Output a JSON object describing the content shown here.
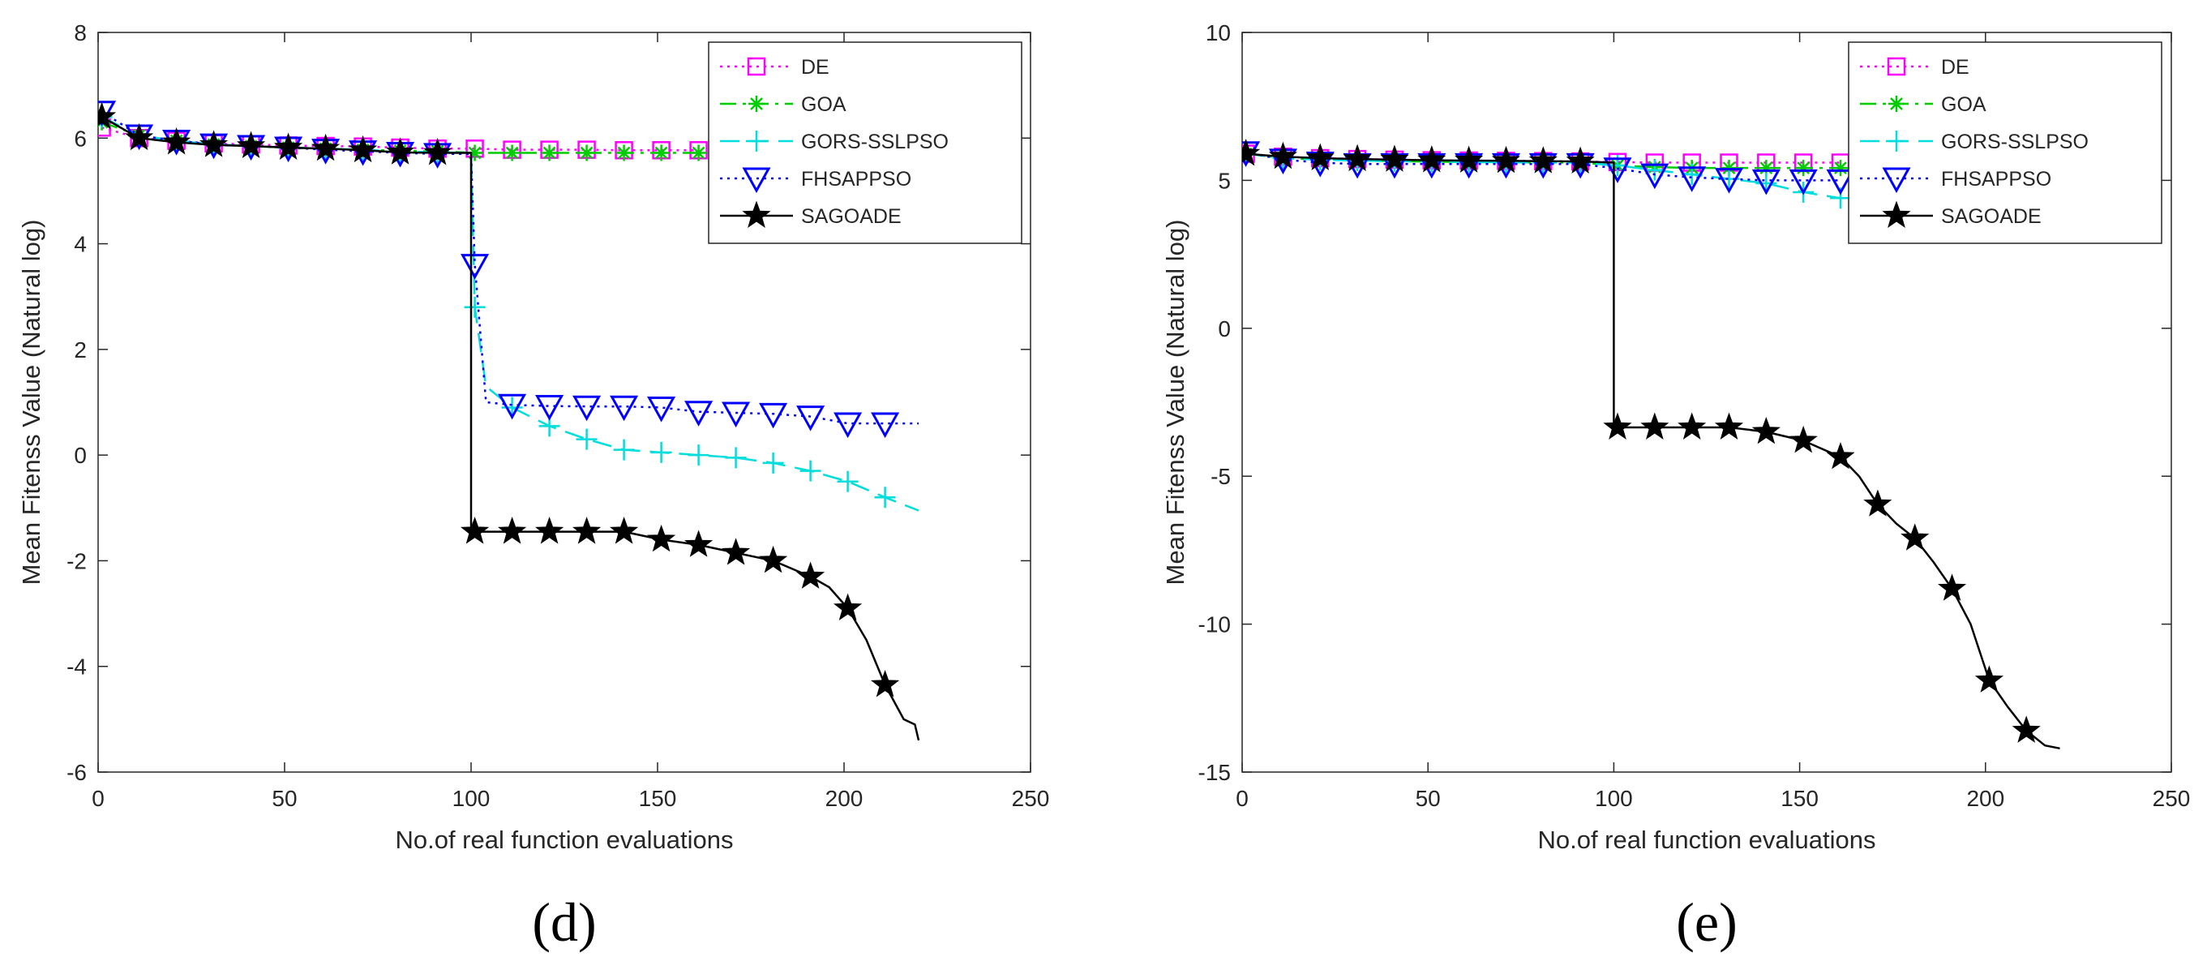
{
  "colors": {
    "DE": "#ff00ff",
    "GOA": "#00cc00",
    "GORS-SSLPSO": "#00dddd",
    "FHSAPPSO": "#0000ff",
    "SAGOADE": "#000000"
  },
  "chart_data": [
    {
      "type": "line",
      "panel_label": "(d)",
      "xlabel": "No.of real function evaluations",
      "ylabel": "Mean Fitenss Value (Natural log)",
      "xlim": [
        0,
        250
      ],
      "ylim": [
        -6,
        8
      ],
      "xticks": [
        "0",
        "50",
        "100",
        "150",
        "200",
        "250"
      ],
      "yticks": [
        "-6",
        "-4",
        "-2",
        "0",
        "2",
        "4",
        "6",
        "8"
      ],
      "legend_position": "top-right",
      "series": [
        {
          "name": "DE",
          "style": "dotted",
          "marker": "square",
          "x": [
            1,
            11,
            21,
            31,
            41,
            51,
            61,
            71,
            81,
            91,
            101,
            111,
            121,
            131,
            141,
            151,
            161
          ],
          "y": [
            6.2,
            6.0,
            5.95,
            5.9,
            5.88,
            5.86,
            5.85,
            5.84,
            5.82,
            5.8,
            5.8,
            5.78,
            5.78,
            5.78,
            5.77,
            5.77,
            5.77
          ]
        },
        {
          "name": "GOA",
          "style": "dashdot",
          "marker": "asterisk",
          "x": [
            1,
            11,
            21,
            31,
            41,
            51,
            61,
            71,
            81,
            91,
            101,
            111,
            121,
            131,
            141,
            151,
            161
          ],
          "y": [
            6.3,
            6.05,
            5.95,
            5.88,
            5.85,
            5.82,
            5.8,
            5.78,
            5.76,
            5.75,
            5.72,
            5.72,
            5.72,
            5.72,
            5.72,
            5.72,
            5.72
          ]
        },
        {
          "name": "GORS-SSLPSO",
          "style": "dashed",
          "marker": "plus",
          "x": [
            1,
            11,
            21,
            31,
            41,
            51,
            61,
            71,
            81,
            91,
            100,
            101,
            104,
            111,
            121,
            131,
            141,
            151,
            161,
            171,
            181,
            191,
            201,
            211,
            220
          ],
          "y": [
            6.4,
            6.05,
            5.95,
            5.88,
            5.85,
            5.82,
            5.8,
            5.78,
            5.75,
            5.73,
            5.72,
            2.8,
            1.3,
            0.9,
            0.55,
            0.3,
            0.1,
            0.05,
            0.0,
            -0.05,
            -0.15,
            -0.3,
            -0.5,
            -0.8,
            -1.05
          ]
        },
        {
          "name": "FHSAPPSO",
          "style": "dotted",
          "marker": "triangle-down",
          "x": [
            1,
            11,
            21,
            31,
            41,
            51,
            61,
            71,
            81,
            91,
            100,
            101,
            104,
            111,
            121,
            131,
            141,
            151,
            161,
            171,
            181,
            191,
            201,
            211,
            220
          ],
          "y": [
            6.5,
            6.05,
            5.95,
            5.88,
            5.85,
            5.82,
            5.78,
            5.75,
            5.72,
            5.7,
            5.7,
            3.6,
            1.0,
            0.95,
            0.93,
            0.92,
            0.92,
            0.9,
            0.82,
            0.8,
            0.78,
            0.73,
            0.6,
            0.6,
            0.6
          ]
        },
        {
          "name": "SAGOADE",
          "style": "solid",
          "marker": "star",
          "x": [
            1,
            11,
            21,
            31,
            41,
            51,
            61,
            71,
            81,
            91,
            100,
            100,
            101,
            111,
            121,
            131,
            141,
            151,
            161,
            171,
            181,
            191,
            196,
            201,
            206,
            211,
            216,
            219,
            220
          ],
          "y": [
            6.4,
            6.0,
            5.92,
            5.87,
            5.85,
            5.82,
            5.8,
            5.77,
            5.73,
            5.72,
            5.72,
            -1.45,
            -1.45,
            -1.45,
            -1.45,
            -1.45,
            -1.45,
            -1.6,
            -1.7,
            -1.85,
            -2.0,
            -2.3,
            -2.5,
            -2.9,
            -3.5,
            -4.35,
            -5.0,
            -5.1,
            -5.4
          ]
        }
      ]
    },
    {
      "type": "line",
      "panel_label": "(e)",
      "xlabel": "No.of real function evaluations",
      "ylabel": "Mean Fitenss Value (Natural log)",
      "xlim": [
        0,
        250
      ],
      "ylim": [
        -15,
        10
      ],
      "xticks": [
        "0",
        "50",
        "100",
        "150",
        "200",
        "250"
      ],
      "yticks": [
        "-15",
        "-10",
        "-5",
        "0",
        "5",
        "10"
      ],
      "legend_position": "top-right",
      "series": [
        {
          "name": "DE",
          "style": "dotted",
          "marker": "square",
          "x": [
            1,
            11,
            21,
            31,
            41,
            51,
            61,
            71,
            81,
            91,
            101,
            111,
            121,
            131,
            141,
            151,
            161
          ],
          "y": [
            5.9,
            5.8,
            5.75,
            5.72,
            5.7,
            5.68,
            5.67,
            5.66,
            5.65,
            5.64,
            5.62,
            5.6,
            5.6,
            5.6,
            5.6,
            5.6,
            5.6
          ]
        },
        {
          "name": "GOA",
          "style": "dashdot",
          "marker": "asterisk",
          "x": [
            1,
            11,
            21,
            31,
            41,
            51,
            61,
            71,
            81,
            91,
            101,
            111,
            121,
            131,
            141,
            151,
            161
          ],
          "y": [
            5.9,
            5.75,
            5.7,
            5.67,
            5.65,
            5.63,
            5.62,
            5.61,
            5.6,
            5.6,
            5.5,
            5.45,
            5.42,
            5.42,
            5.42,
            5.42,
            5.42
          ]
        },
        {
          "name": "GORS-SSLPSO",
          "style": "dashed",
          "marker": "plus",
          "x": [
            1,
            11,
            21,
            31,
            41,
            51,
            61,
            71,
            81,
            91,
            101,
            111,
            121,
            131,
            141,
            151,
            161
          ],
          "y": [
            5.9,
            5.75,
            5.7,
            5.67,
            5.65,
            5.63,
            5.62,
            5.61,
            5.6,
            5.6,
            5.5,
            5.35,
            5.2,
            5.05,
            4.9,
            4.6,
            4.4
          ]
        },
        {
          "name": "FHSAPPSO",
          "style": "dotted",
          "marker": "triangle-down",
          "x": [
            1,
            11,
            21,
            31,
            41,
            51,
            61,
            71,
            81,
            91,
            101,
            111,
            121,
            131,
            141,
            151,
            161
          ],
          "y": [
            5.95,
            5.7,
            5.6,
            5.55,
            5.55,
            5.55,
            5.55,
            5.55,
            5.55,
            5.55,
            5.4,
            5.2,
            5.1,
            5.05,
            5.0,
            5.0,
            5.0
          ]
        },
        {
          "name": "SAGOADE",
          "style": "solid",
          "marker": "star",
          "x": [
            1,
            11,
            21,
            31,
            41,
            51,
            61,
            71,
            81,
            91,
            100,
            100,
            101,
            111,
            121,
            131,
            141,
            151,
            161,
            166,
            171,
            176,
            181,
            186,
            191,
            196,
            201,
            206,
            211,
            216,
            220
          ],
          "y": [
            5.9,
            5.8,
            5.75,
            5.72,
            5.7,
            5.68,
            5.67,
            5.66,
            5.65,
            5.64,
            5.6,
            -3.35,
            -3.35,
            -3.35,
            -3.35,
            -3.35,
            -3.5,
            -3.8,
            -4.35,
            -5.0,
            -5.95,
            -6.6,
            -7.1,
            -7.9,
            -8.8,
            -10.0,
            -11.9,
            -12.8,
            -13.6,
            -14.1,
            -14.2
          ]
        }
      ]
    }
  ]
}
